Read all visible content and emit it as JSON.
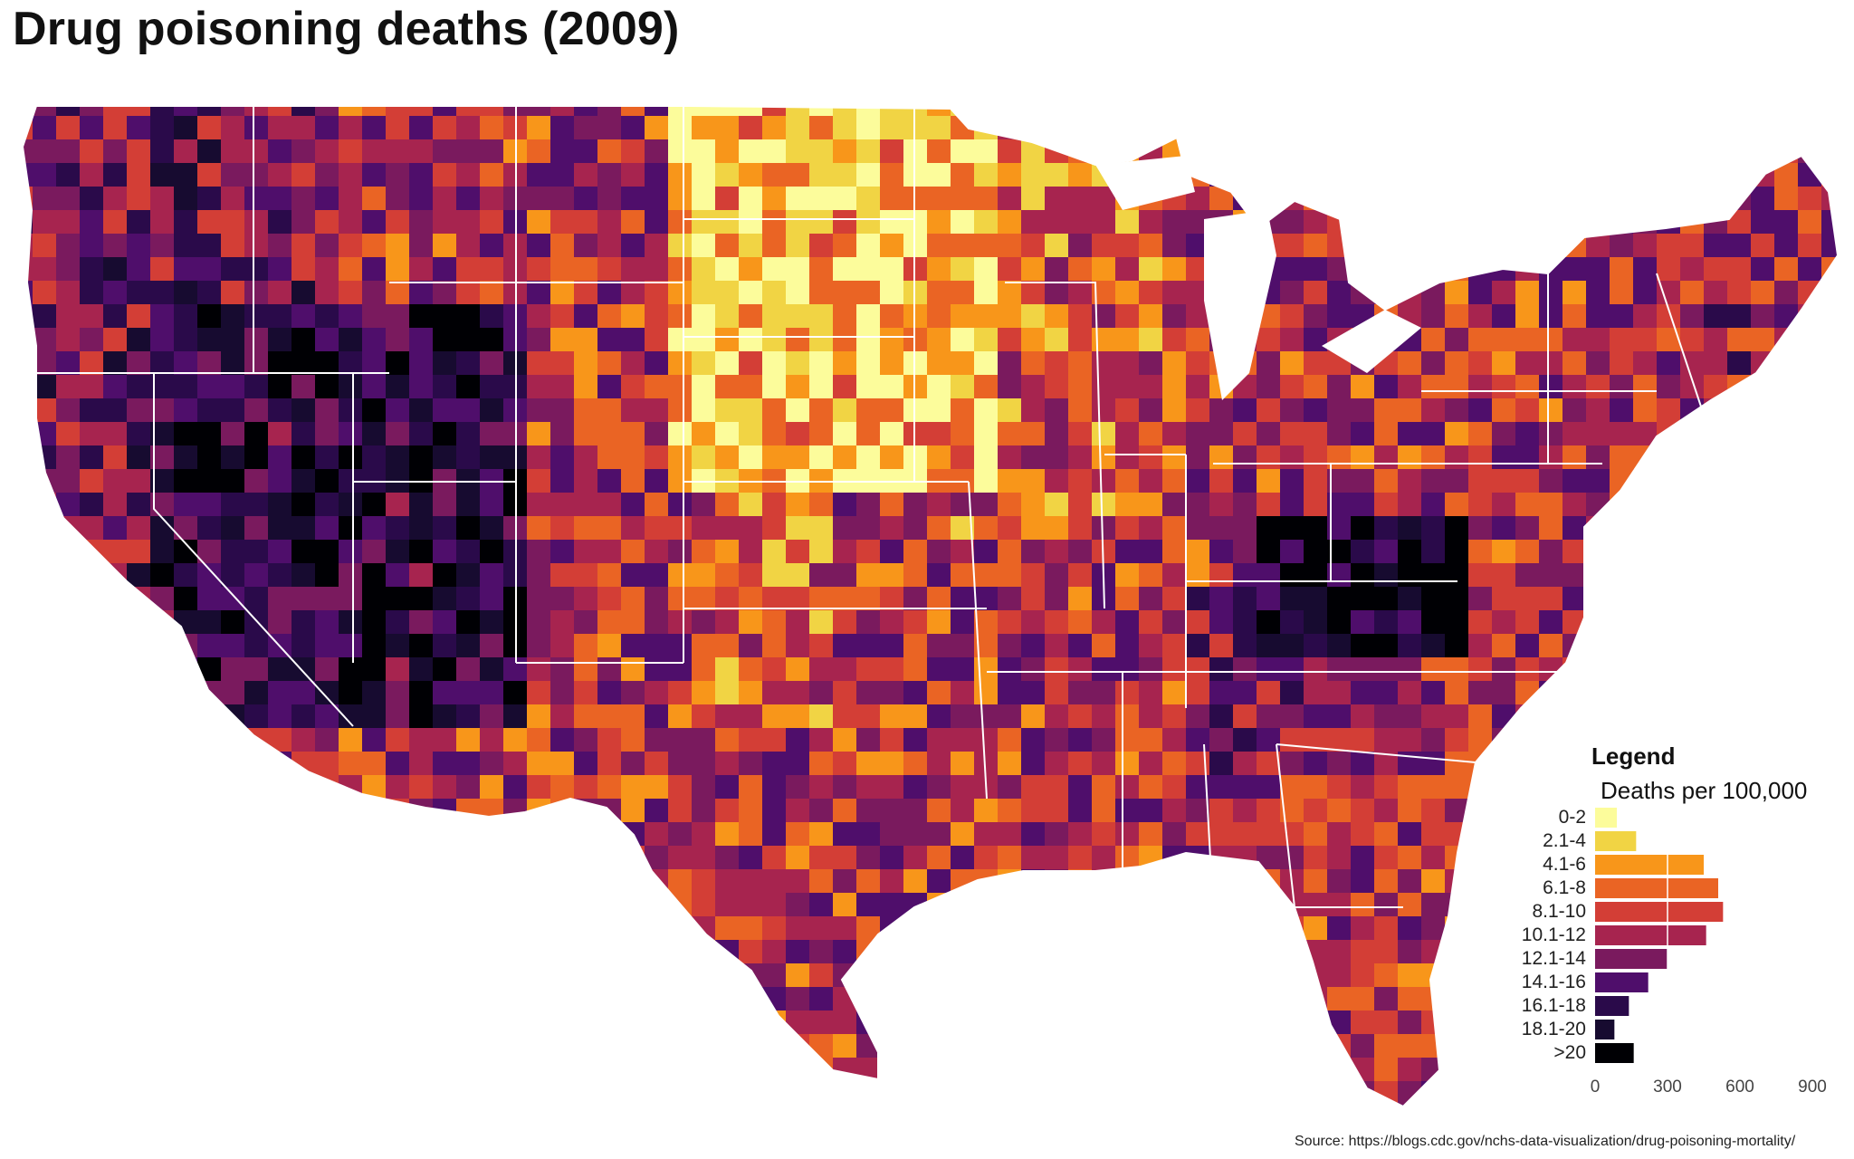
{
  "title": "Drug poisoning deaths (2009)",
  "source": "Source: https://blogs.cdc.gov/nchs-data-visualization/drug-poisoning-mortality/",
  "map": {
    "type": "county choropleth",
    "region": "Contiguous United States",
    "state_borders": "white",
    "water_color": "#ffffff"
  },
  "legend": {
    "title": "Legend",
    "subtitle": "Deaths per 100,000",
    "axis_ticks": [
      "0",
      "300",
      "600",
      "900"
    ],
    "axis_max": 900,
    "bins": [
      {
        "label": "0-2",
        "color": "#fcfc9b",
        "count": 90
      },
      {
        "label": "2.1-4",
        "color": "#f1d444",
        "count": 170
      },
      {
        "label": "4.1-6",
        "color": "#f8961a",
        "count": 450
      },
      {
        "label": "6.1-8",
        "color": "#ea6424",
        "count": 510
      },
      {
        "label": "8.1-10",
        "color": "#d33e36",
        "count": 530
      },
      {
        "label": "10.1-12",
        "color": "#a7244f",
        "count": 460
      },
      {
        "label": "12.1-14",
        "color": "#7a1a5e",
        "count": 300
      },
      {
        "label": "14.1-16",
        "color": "#4f0e6b",
        "count": 220
      },
      {
        "label": "16.1-18",
        "color": "#2a0a4a",
        "count": 140
      },
      {
        "label": "18.1-20",
        "color": "#170b30",
        "count": 80
      },
      {
        "label": ">20",
        "color": "#000004",
        "count": 160
      }
    ]
  }
}
